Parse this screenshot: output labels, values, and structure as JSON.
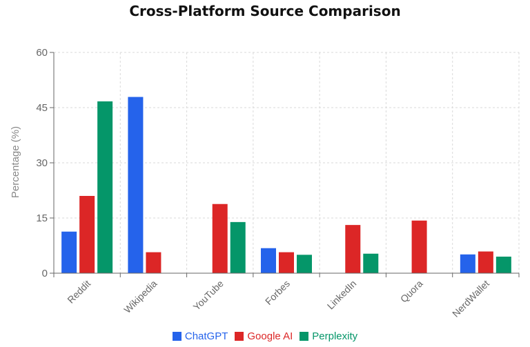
{
  "chart_data": {
    "type": "bar",
    "title": "Cross-Platform Source Comparison",
    "ylabel": "Percentage (%)",
    "xlabel": "",
    "ylim": [
      0,
      60
    ],
    "yticks": [
      0,
      15,
      30,
      45,
      60
    ],
    "grid": true,
    "legend_position": "bottom",
    "categories": [
      "Reddit",
      "Wikipedia",
      "YouTube",
      "Forbes",
      "LinkedIn",
      "Quora",
      "NerdWallet"
    ],
    "series": [
      {
        "name": "ChatGPT",
        "color": "#2563eb",
        "values": [
          11.3,
          47.9,
          null,
          6.8,
          null,
          null,
          5.1
        ]
      },
      {
        "name": "Google AI",
        "color": "#dc2626",
        "values": [
          21.0,
          5.7,
          18.8,
          5.7,
          13.1,
          14.3,
          5.9
        ]
      },
      {
        "name": "Perplexity",
        "color": "#059669",
        "values": [
          46.7,
          null,
          13.9,
          5.0,
          5.3,
          null,
          4.5
        ]
      }
    ]
  }
}
